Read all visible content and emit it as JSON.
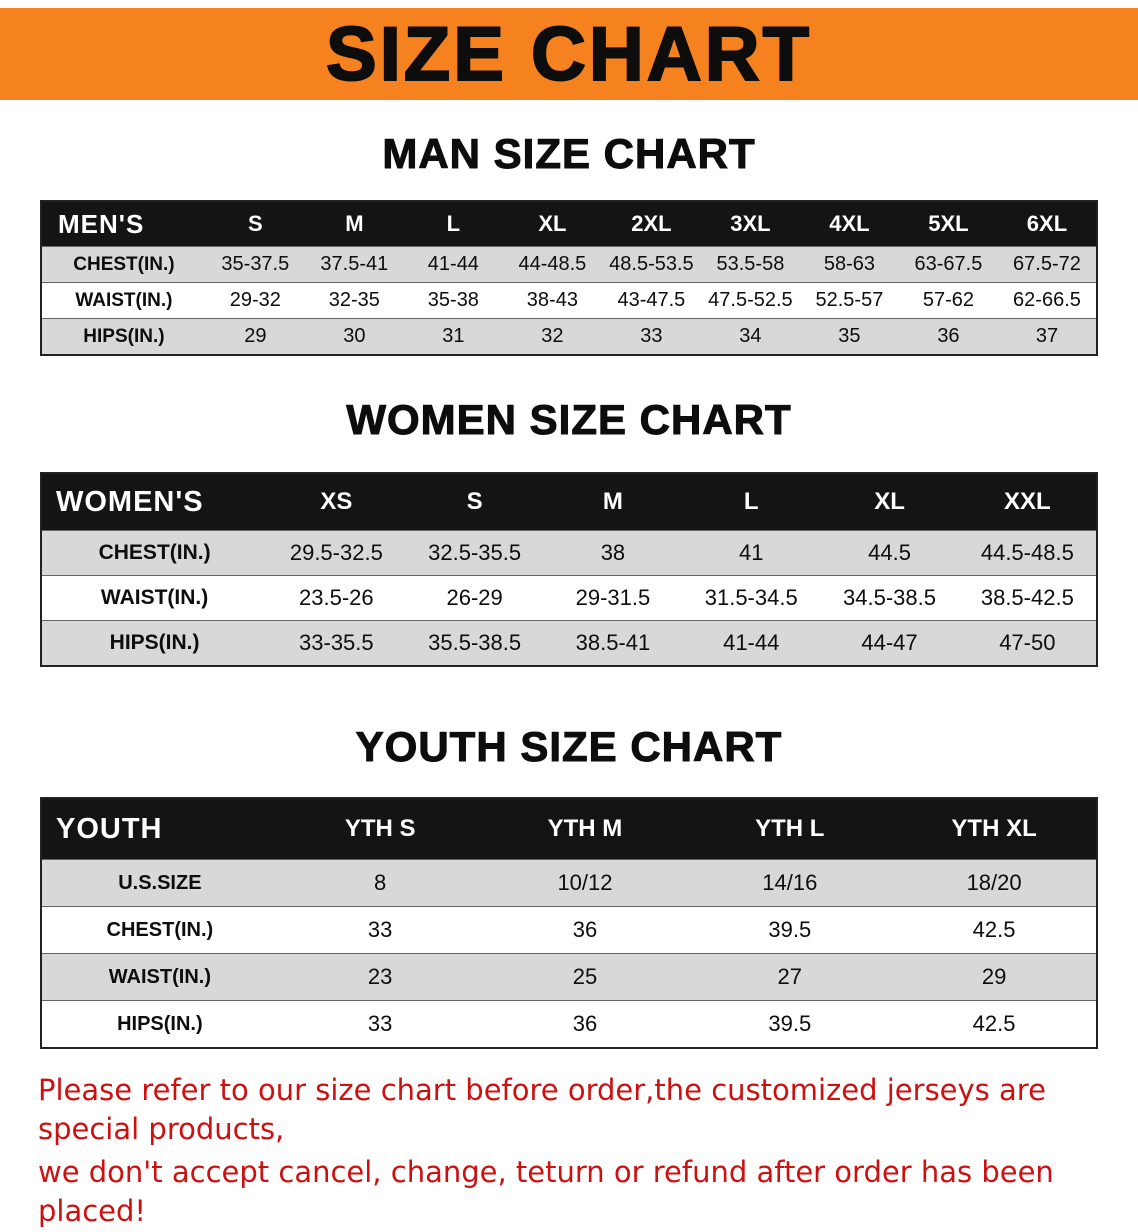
{
  "theme": {
    "banner_bg": "#f5821f",
    "header_bg": "#141414",
    "row_gray": "#d8d8d8",
    "notice_red": "#cc1111"
  },
  "banner": {
    "title": "SIZE CHART"
  },
  "sections": [
    {
      "heading": "MAN SIZE CHART",
      "table": {
        "header": [
          "MEN'S",
          "S",
          "M",
          "L",
          "XL",
          "2XL",
          "3XL",
          "4XL",
          "5XL",
          "6XL"
        ],
        "rows": [
          [
            "CHEST(IN.)",
            "35-37.5",
            "37.5-41",
            "41-44",
            "44-48.5",
            "48.5-53.5",
            "53.5-58",
            "58-63",
            "63-67.5",
            "67.5-72"
          ],
          [
            "WAIST(IN.)",
            "29-32",
            "32-35",
            "35-38",
            "38-43",
            "43-47.5",
            "47.5-52.5",
            "52.5-57",
            "57-62",
            "62-66.5"
          ],
          [
            "HIPS(IN.)",
            "29",
            "30",
            "31",
            "32",
            "33",
            "34",
            "35",
            "36",
            "37"
          ]
        ]
      }
    },
    {
      "heading": "WOMEN SIZE CHART",
      "table": {
        "header": [
          "WOMEN'S",
          "XS",
          "S",
          "M",
          "L",
          "XL",
          "XXL"
        ],
        "rows": [
          [
            "CHEST(IN.)",
            "29.5-32.5",
            "32.5-35.5",
            "38",
            "41",
            "44.5",
            "44.5-48.5"
          ],
          [
            "WAIST(IN.)",
            "23.5-26",
            "26-29",
            "29-31.5",
            "31.5-34.5",
            "34.5-38.5",
            "38.5-42.5"
          ],
          [
            "HIPS(IN.)",
            "33-35.5",
            "35.5-38.5",
            "38.5-41",
            "41-44",
            "44-47",
            "47-50"
          ]
        ]
      }
    },
    {
      "heading": "YOUTH SIZE CHART",
      "table": {
        "header": [
          "YOUTH",
          "YTH S",
          "YTH M",
          "YTH L",
          "YTH XL"
        ],
        "rows": [
          [
            "U.S.SIZE",
            "8",
            "10/12",
            "14/16",
            "18/20"
          ],
          [
            "CHEST(IN.)",
            "33",
            "36",
            "39.5",
            "42.5"
          ],
          [
            "WAIST(IN.)",
            "23",
            "25",
            "27",
            "29"
          ],
          [
            "HIPS(IN.)",
            "33",
            "36",
            "39.5",
            "42.5"
          ]
        ]
      }
    }
  ],
  "footer": {
    "line1": "Please refer to our size chart before order,the customized jerseys are special products,",
    "line2": "we don't accept cancel, change, teturn or refund after order has been placed!"
  }
}
